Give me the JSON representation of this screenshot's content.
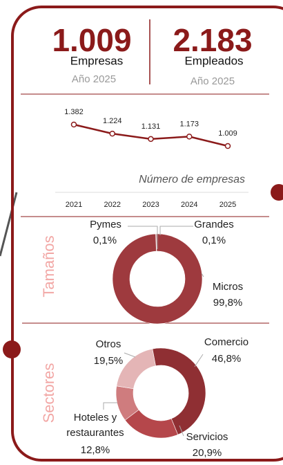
{
  "kpis": [
    {
      "value": "1.009",
      "label": "Empresas",
      "period": "Año 2025"
    },
    {
      "value": "2.183",
      "label": "Empleados",
      "period": "Año 2025"
    }
  ],
  "chart_data": [
    {
      "type": "line",
      "x": [
        "2021",
        "2022",
        "2023",
        "2024",
        "2025"
      ],
      "values": [
        1382,
        1224,
        1131,
        1173,
        1009
      ],
      "value_labels": [
        "1.382",
        "1.224",
        "1.131",
        "1.173",
        "1.009"
      ],
      "label": "Número de empresas",
      "color": "#8b1a1a"
    },
    {
      "type": "pie",
      "title": "Tamaños",
      "donut": true,
      "categories": [
        "Pymes",
        "Grandes",
        "Micros"
      ],
      "values": [
        0.1,
        0.1,
        99.8
      ],
      "value_labels": [
        "0,1%",
        "0,1%",
        "99,8%"
      ],
      "colors": [
        "#9e3a3e",
        "#9e3a3e",
        "#9e3a3e"
      ]
    },
    {
      "type": "pie",
      "title": "Sectores",
      "donut": true,
      "categories": [
        "Comercio",
        "Servicios",
        "Hoteles y restaurantes",
        "Otros"
      ],
      "values": [
        46.8,
        20.9,
        12.8,
        19.5
      ],
      "value_labels": [
        "46,8%",
        "20,9%",
        "12,8%",
        "19,5%"
      ],
      "colors": [
        "#8f2f33",
        "#b5474b",
        "#cf7c7e",
        "#e4b5b6"
      ]
    }
  ]
}
